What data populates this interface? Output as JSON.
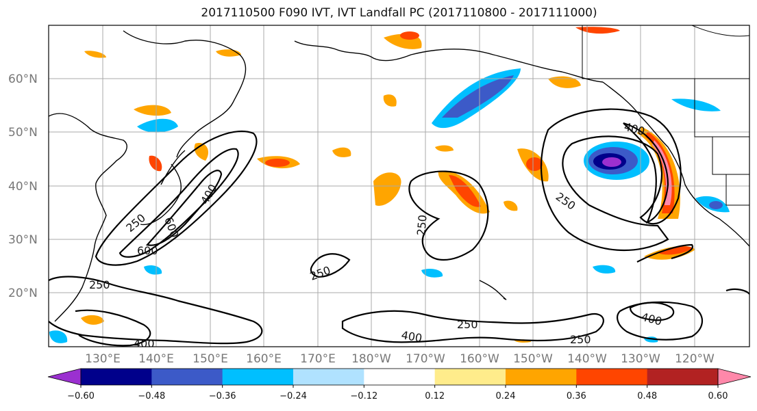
{
  "title": "2017110500 F090 IVT, IVT Landfall PC (2017110800 - 2017111000)",
  "lon_ticks": [
    "130°E",
    "140°E",
    "150°E",
    "160°E",
    "170°E",
    "180°W",
    "170°W",
    "160°W",
    "150°W",
    "140°W",
    "130°W",
    "120°W"
  ],
  "lat_ticks": [
    "60°N",
    "50°N",
    "40°N",
    "30°N",
    "20°N"
  ],
  "colorbar": {
    "colors": [
      "#9b30d0",
      "#00008b",
      "#3c5ac8",
      "#00bfff",
      "#b0e2ff",
      "#ffffff",
      "#ffec8b",
      "#ffa500",
      "#ff4500",
      "#b22222",
      "#ff88aa"
    ],
    "labels": [
      "-0.60",
      "-0.48",
      "-0.36",
      "-0.24",
      "-0.12",
      "0.12",
      "0.24",
      "0.36",
      "0.48",
      "0.60"
    ]
  },
  "contour_labels": [
    "250",
    "400",
    "600",
    "250",
    "400",
    "600",
    "250",
    "250",
    "250",
    "400",
    "250",
    "400",
    "250",
    "400",
    "250",
    "400",
    "250",
    "400"
  ]
}
